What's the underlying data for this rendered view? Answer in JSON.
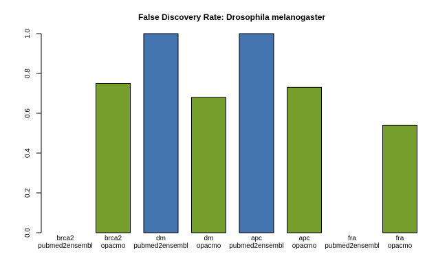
{
  "chart_data": {
    "type": "bar",
    "title": "False Discovery Rate: Drosophila melanogaster",
    "xlabel": "",
    "ylabel": "",
    "ylim": [
      0,
      1.0
    ],
    "yticks": [
      "0.0",
      "0.2",
      "0.4",
      "0.6",
      "0.8",
      "1.0"
    ],
    "grid": false,
    "categories": [
      [
        "brca2",
        "pubmed2ensembl"
      ],
      [
        "brca2",
        "opacmo"
      ],
      [
        "dm",
        "pubmed2ensembl"
      ],
      [
        "dm",
        "opacmo"
      ],
      [
        "apc",
        "pubmed2ensembl"
      ],
      [
        "apc",
        "opacmo"
      ],
      [
        "fra",
        "pubmed2ensembl"
      ],
      [
        "fra",
        "opacmo"
      ]
    ],
    "values": [
      0.0,
      0.75,
      1.0,
      0.68,
      1.0,
      0.73,
      0.0,
      0.54
    ],
    "colors": [
      "#4575b0",
      "#769e2a",
      "#4575b0",
      "#769e2a",
      "#4575b0",
      "#769e2a",
      "#4575b0",
      "#769e2a"
    ]
  }
}
